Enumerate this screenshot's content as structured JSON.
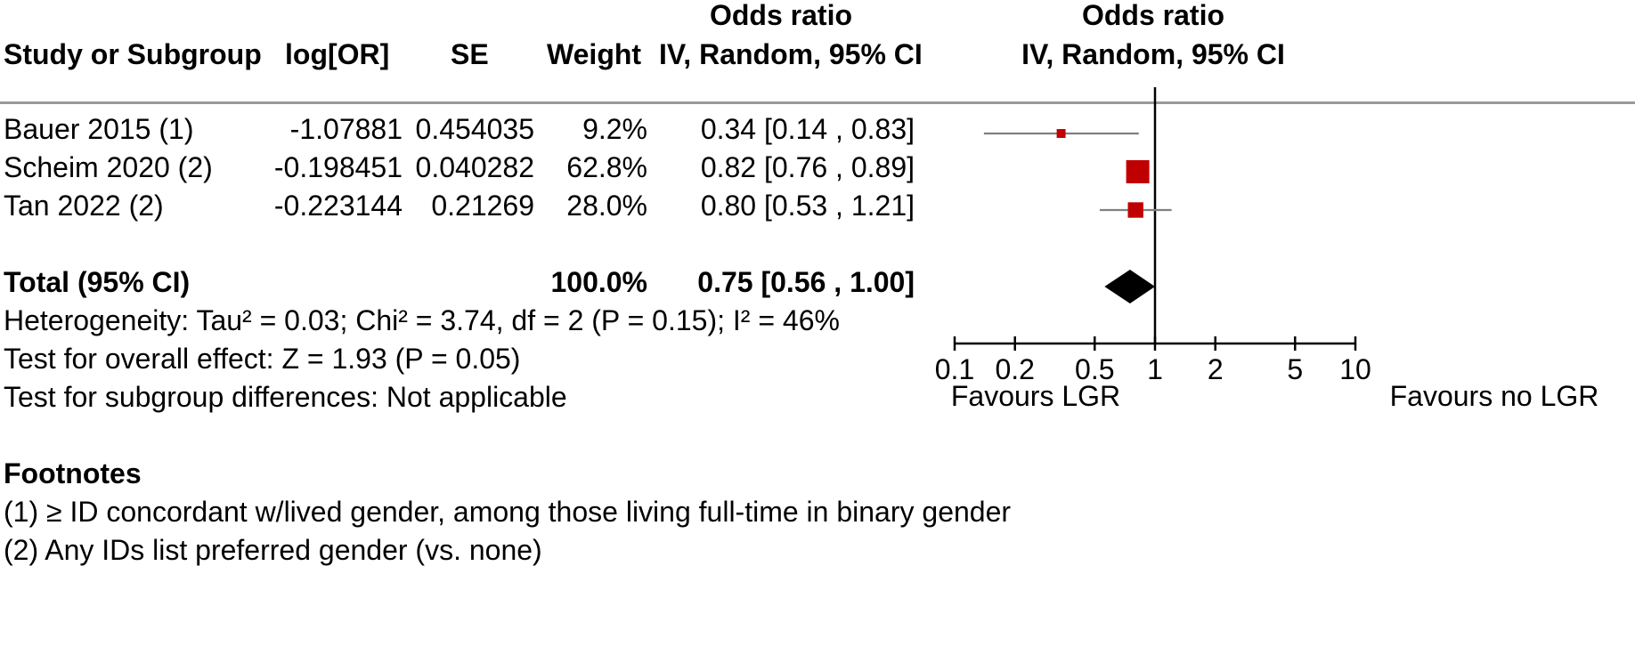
{
  "header": {
    "col_study": "Study or Subgroup",
    "col_log_or": "log[OR]",
    "col_se": "SE",
    "col_weight": "Weight",
    "col_or_title": "Odds ratio",
    "col_or_method": "IV, Random, 95% CI",
    "plot_title": "Odds ratio",
    "plot_method": "IV, Random, 95% CI"
  },
  "studies": [
    {
      "name": "Bauer 2015 (1)",
      "log_or": "-1.07881",
      "se": "0.454035",
      "weight": "9.2%",
      "ci_text": "0.34 [0.14 , 0.83]"
    },
    {
      "name": "Scheim 2020 (2)",
      "log_or": "-0.198451",
      "se": "0.040282",
      "weight": "62.8%",
      "ci_text": "0.82 [0.76 , 0.89]"
    },
    {
      "name": "Tan 2022 (2)",
      "log_or": "-0.223144",
      "se": "0.21269",
      "weight": "28.0%",
      "ci_text": "0.80 [0.53 , 1.21]"
    }
  ],
  "total": {
    "label": "Total (95% CI)",
    "weight": "100.0%",
    "ci_text": "0.75 [0.56 , 1.00]"
  },
  "stats": {
    "heterogeneity": "Heterogeneity: Tau² = 0.03; Chi² = 3.74, df = 2 (P = 0.15); I² = 46%",
    "overall_effect": "Test for overall effect: Z = 1.93 (P = 0.05)",
    "subgroup_diff": "Test for subgroup differences: Not applicable"
  },
  "footnotes": {
    "title": "Footnotes",
    "items": [
      "(1) ≥ ID concordant w/lived gender, among those living full-time in binary gender",
      "(2) Any IDs list preferred gender (vs. none)"
    ]
  },
  "colors": {
    "marker": "#c00000",
    "diamond": "#000000",
    "ci_line": "#808080",
    "axis": "#000000"
  },
  "chart_data": {
    "type": "forest",
    "scale": "log",
    "title": "Odds ratio",
    "subtitle": "IV, Random, 95% CI",
    "xlim": [
      0.1,
      10
    ],
    "null_value": 1,
    "ticks": [
      0.1,
      0.2,
      0.5,
      1,
      2,
      5,
      10
    ],
    "tick_labels": [
      "0.1",
      "0.2",
      "0.5",
      "1",
      "2",
      "5",
      "10"
    ],
    "xlabel_left": "Favours LGR",
    "xlabel_right": "Favours no LGR",
    "series": [
      {
        "name": "Bauer 2015 (1)",
        "or": 0.34,
        "lower": 0.14,
        "upper": 0.83,
        "weight": 9.2
      },
      {
        "name": "Scheim 2020 (2)",
        "or": 0.82,
        "lower": 0.76,
        "upper": 0.89,
        "weight": 62.8
      },
      {
        "name": "Tan 2022 (2)",
        "or": 0.8,
        "lower": 0.53,
        "upper": 1.21,
        "weight": 28.0
      }
    ],
    "pooled": {
      "name": "Total (95% CI)",
      "or": 0.75,
      "lower": 0.56,
      "upper": 1.0
    }
  }
}
